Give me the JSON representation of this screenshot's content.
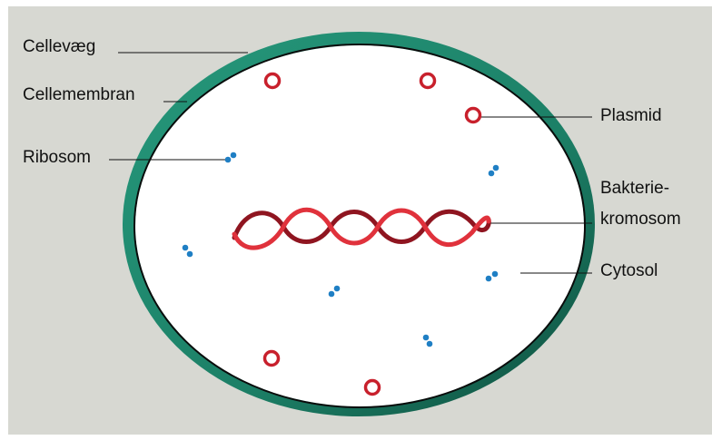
{
  "labels": {
    "cellevaeg": "Cellevæg",
    "cellemembran": "Cellemembran",
    "ribosom": "Ribosom",
    "plasmid": "Plasmid",
    "bakteriekromosom_line1": "Bakterie-",
    "bakteriekromosom_line2": "kromosom",
    "cytosol": "Cytosol"
  },
  "colors": {
    "background": "#d7d8d2",
    "cell_wall": "#1f8a70",
    "cytosol": "#ffffff",
    "chromosome": "#c8202c",
    "plasmid": "#c8202c",
    "ribosome": "#1f7fc4"
  }
}
